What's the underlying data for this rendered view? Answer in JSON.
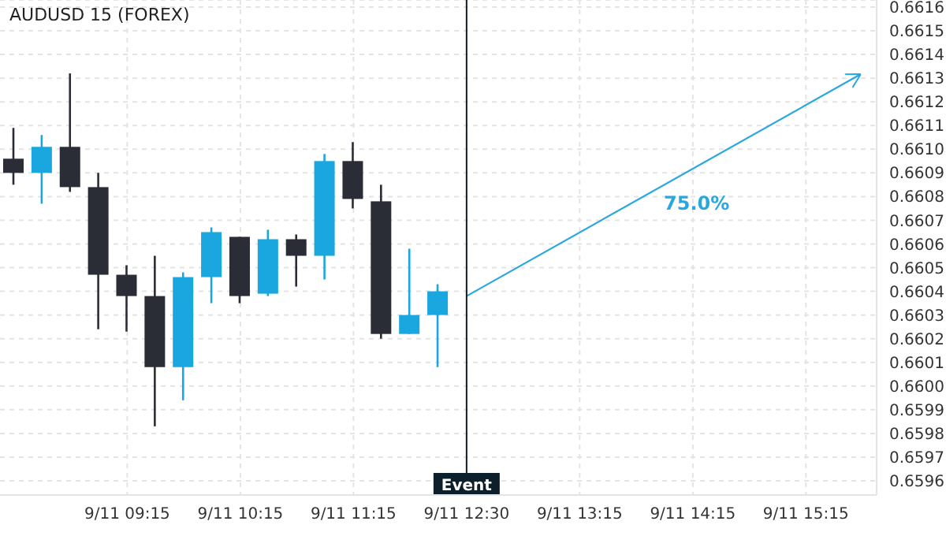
{
  "chart_data": {
    "type": "candlestick",
    "title": "AUDUSD 15 (FOREX)",
    "categories": [
      null,
      null,
      null,
      null,
      "9/11 09:15",
      null,
      null,
      null,
      "9/11 10:15",
      null,
      null,
      null,
      "9/11 11:15",
      null,
      null,
      null,
      "9/11 12:30",
      null,
      null,
      null,
      "9/11 13:15",
      null,
      null,
      null,
      "9/11 14:15",
      null,
      null,
      null,
      "9/11 15:15",
      null,
      null
    ],
    "ohlc": [
      [
        0.66096,
        0.66109,
        0.66085,
        0.6609
      ],
      [
        0.6609,
        0.66106,
        0.66077,
        0.66101
      ],
      [
        0.66101,
        0.66132,
        0.66082,
        0.66084
      ],
      [
        0.66084,
        0.6609,
        0.66024,
        0.66047
      ],
      [
        0.66047,
        0.66051,
        0.66023,
        0.66038
      ],
      [
        0.66038,
        0.66055,
        0.65983,
        0.66008
      ],
      [
        0.66008,
        0.66048,
        0.65994,
        0.66046
      ],
      [
        0.66046,
        0.66067,
        0.66035,
        0.66065
      ],
      [
        0.66063,
        0.66063,
        0.66035,
        0.66038
      ],
      [
        0.66039,
        0.66066,
        0.66038,
        0.66062
      ],
      [
        0.66062,
        0.66064,
        0.66042,
        0.66055
      ],
      [
        0.66055,
        0.66098,
        0.66045,
        0.66095
      ],
      [
        0.66095,
        0.66103,
        0.66075,
        0.66079
      ],
      [
        0.66078,
        0.66085,
        0.6602,
        0.66022
      ],
      [
        0.66022,
        0.66058,
        0.66022,
        0.6603
      ],
      [
        0.6603,
        0.66043,
        0.66008,
        0.6604
      ],
      null,
      null,
      null,
      null,
      null,
      null,
      null,
      null,
      null,
      null,
      null,
      null,
      null,
      null,
      null
    ],
    "colors": [
      "#2b2d36",
      "#1aa6df",
      "#2b2d36",
      "#2b2d36",
      "#2b2d36",
      "#2b2d36",
      "#1aa6df",
      "#1aa6df",
      "#2b2d36",
      "#1aa6df",
      "#2b2d36",
      "#1aa6df",
      "#2b2d36",
      "#2b2d36",
      "#1aa6df",
      "#1aa6df",
      null,
      null,
      null,
      null,
      null,
      null,
      null,
      null,
      null,
      null,
      null,
      null,
      null,
      null,
      null
    ],
    "annotations": [
      "75.0%"
    ],
    "ref_lines": [
      {
        "axis": "x",
        "value": "9/11 12:30",
        "label": "Event",
        "color": "#0d1f2a"
      }
    ],
    "ylim": [
      0.65954,
      0.66163
    ],
    "yticks": [
      0.6596,
      0.6597,
      0.6598,
      0.6599,
      {
        "value": 0.66,
        "label": "0.6600"
      },
      0.6601,
      0.6602,
      0.6603,
      0.6604,
      0.6605,
      0.6606,
      0.6607,
      0.6608,
      0.6609,
      {
        "value": 0.661,
        "label": "0.6610"
      },
      0.6611,
      0.6612,
      0.6613,
      0.6614,
      0.6615,
      0.6616
    ],
    "grid": true
  }
}
